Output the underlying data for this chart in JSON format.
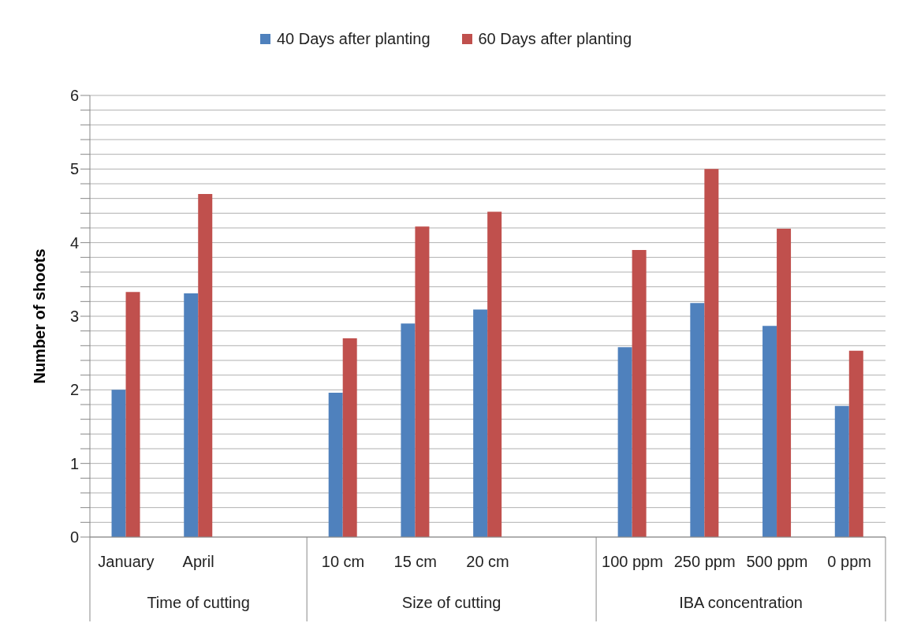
{
  "chart_data": {
    "type": "bar",
    "ylabel": "Number of shoots",
    "categories": [
      "January",
      "April",
      null,
      "10 cm",
      "15 cm",
      "20 cm",
      null,
      "100 ppm",
      "250 ppm",
      "500 ppm",
      "0 ppm"
    ],
    "series": [
      {
        "name": "40 Days after planting",
        "color": "#4f81bd",
        "values": [
          2.0,
          3.31,
          null,
          1.96,
          2.9,
          3.09,
          null,
          2.58,
          3.18,
          2.87,
          1.78
        ]
      },
      {
        "name": "60 Days after planting",
        "color": "#c0504d",
        "values": [
          3.33,
          4.66,
          null,
          2.7,
          4.22,
          4.42,
          null,
          3.9,
          5.0,
          4.19,
          2.53
        ]
      }
    ],
    "annotations": [
      "Time of cutting",
      "Size of cutting",
      "IBA concentration"
    ],
    "ylim": [
      0,
      6
    ],
    "yticks": [
      0,
      {
        "value": 0.2,
        "label": null
      },
      {
        "value": 0.4,
        "label": null
      },
      {
        "value": 0.6,
        "label": null
      },
      {
        "value": 0.8,
        "label": null
      },
      1,
      {
        "value": 1.2,
        "label": null
      },
      {
        "value": 1.4,
        "label": null
      },
      {
        "value": 1.6,
        "label": null
      },
      {
        "value": 1.8,
        "label": null
      },
      2,
      {
        "value": 2.2,
        "label": null
      },
      {
        "value": 2.4,
        "label": null
      },
      {
        "value": 2.6,
        "label": null
      },
      {
        "value": 2.8,
        "label": null
      },
      3,
      {
        "value": 3.2,
        "label": null
      },
      {
        "value": 3.4,
        "label": null
      },
      {
        "value": 3.6,
        "label": null
      },
      {
        "value": 3.8,
        "label": null
      },
      4,
      {
        "value": 4.2,
        "label": null
      },
      {
        "value": 4.4,
        "label": null
      },
      {
        "value": 4.6,
        "label": null
      },
      {
        "value": 4.8,
        "label": null
      },
      5,
      {
        "value": 5.2,
        "label": null
      },
      {
        "value": 5.4,
        "label": null
      },
      {
        "value": 5.6,
        "label": null
      },
      {
        "value": 5.8,
        "label": null
      },
      6
    ],
    "grid": "y",
    "legend": "top"
  }
}
